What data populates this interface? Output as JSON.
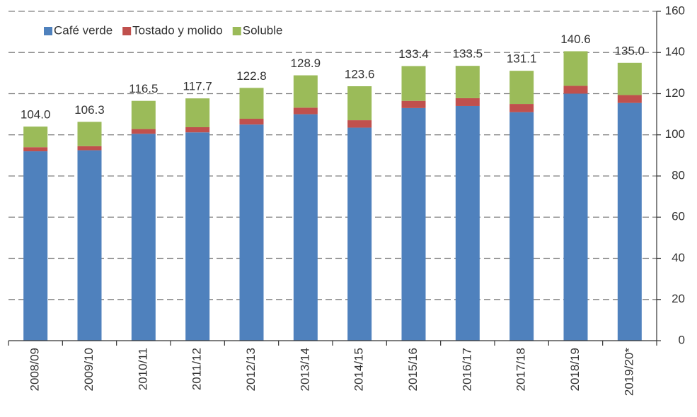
{
  "chart_data": {
    "type": "stacked_bar",
    "categories": [
      "2008/09",
      "2009/10",
      "2010/11",
      "2011/12",
      "2012/13",
      "2013/14",
      "2014/15",
      "2015/16",
      "2016/17",
      "2017/18",
      "2018/19",
      "2019/20*"
    ],
    "series": [
      {
        "name": "Café verde",
        "color": "#4f81bd",
        "values": [
          92,
          92.5,
          100.5,
          101.2,
          105,
          110,
          103.5,
          113,
          114,
          111,
          120,
          115.5
        ]
      },
      {
        "name": "Tostado y molido",
        "color": "#c0504d",
        "values": [
          2,
          2,
          2.3,
          2.5,
          2.8,
          3.2,
          3.6,
          3.5,
          3.8,
          4,
          3.8,
          3.8
        ]
      },
      {
        "name": "Soluble",
        "color": "#9bbb59",
        "values": [
          10,
          11.8,
          13.7,
          14,
          15,
          15.7,
          16.5,
          16.9,
          15.7,
          16.1,
          16.8,
          15.7
        ]
      }
    ],
    "total_labels": [
      "104.0",
      "106.3",
      "116.5",
      "117.7",
      "122.8",
      "128.9",
      "123.6",
      "133.4",
      "133.5",
      "131.1",
      "140.6",
      "135.0"
    ],
    "ylim": [
      0,
      160
    ],
    "yticks": [
      0,
      20,
      40,
      60,
      80,
      100,
      120,
      140,
      160
    ],
    "y_axis_side": "right",
    "grid": true,
    "legend": "top-left"
  }
}
